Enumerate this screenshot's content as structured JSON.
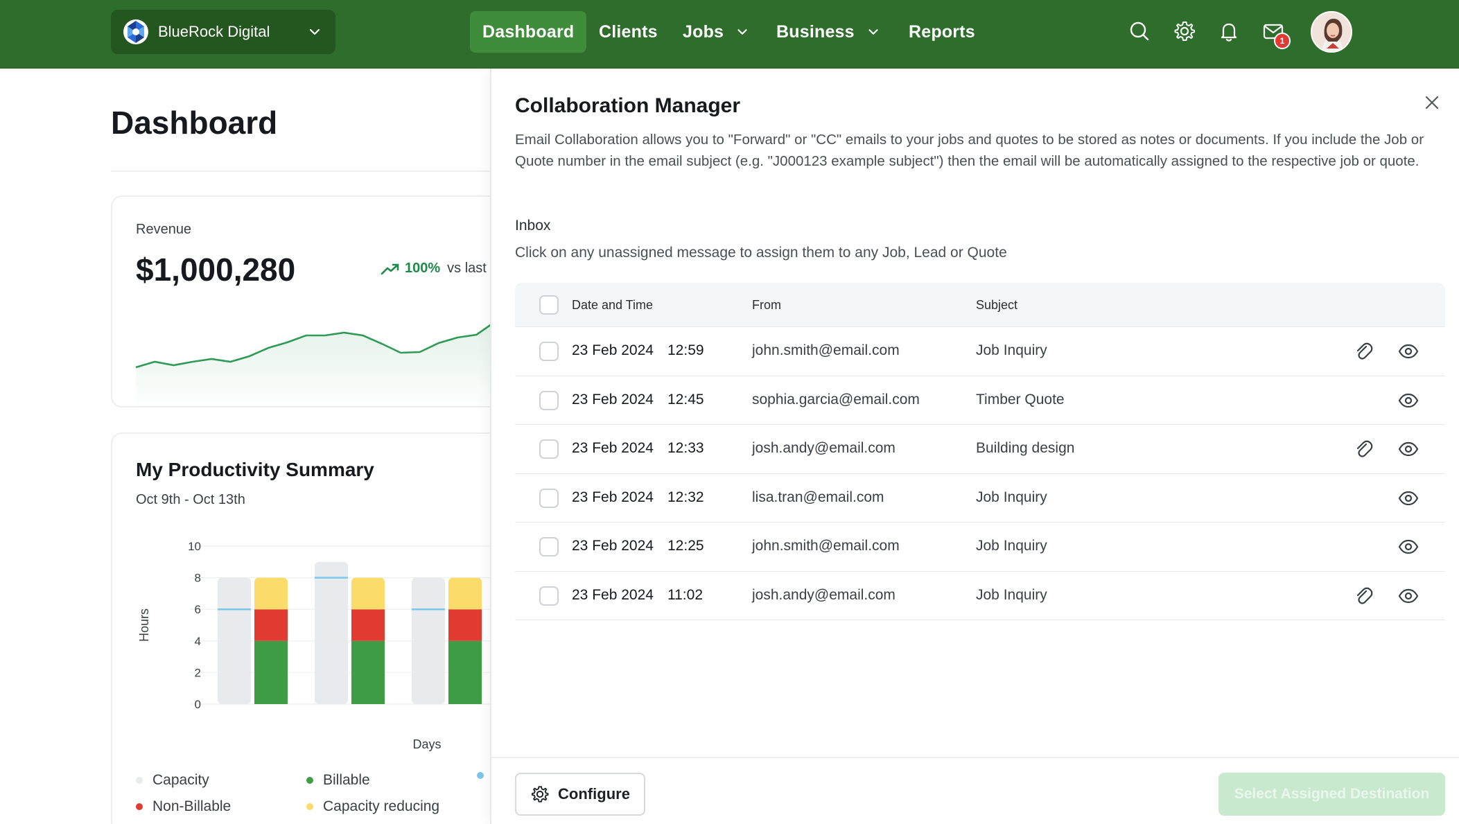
{
  "header": {
    "org_name": "BlueRock Digital",
    "nav": [
      {
        "label": "Dashboard",
        "active": true
      },
      {
        "label": "Clients"
      },
      {
        "label": "Jobs",
        "has_dropdown": true
      },
      {
        "label": "Business",
        "has_dropdown": true
      },
      {
        "label": "Reports"
      }
    ],
    "mail_badge_count": "1",
    "icons": [
      "search-icon",
      "gear-icon",
      "bell-icon",
      "mail-icon",
      "avatar"
    ]
  },
  "dashboard": {
    "title": "Dashboard",
    "revenue": {
      "label": "Revenue",
      "value": "$1,000,280",
      "trend_pct": "100%",
      "trend_text": "vs last",
      "sparkline": [
        10,
        18,
        13,
        18,
        22,
        18,
        26,
        38,
        46,
        56,
        56,
        60,
        56,
        44,
        31,
        32,
        45,
        53,
        57,
        76,
        80
      ]
    },
    "productivity": {
      "title": "My Productivity Summary",
      "range": "Oct 9th - Oct 13th",
      "chart_data": {
        "type": "bar",
        "ylabel": "Hours",
        "xlabel": "Days",
        "ylim": [
          0,
          10
        ],
        "y_ticks": [
          "10",
          "8",
          "6",
          "4",
          "2",
          "0"
        ],
        "capacity": [
          8,
          9,
          8
        ],
        "capacity_line": [
          6,
          8,
          6
        ],
        "stacks": [
          {
            "billable": 4,
            "non_billable": 2,
            "capacity_reducing": 2
          },
          {
            "billable": 4,
            "non_billable": 2,
            "capacity_reducing": 2
          },
          {
            "billable": 4,
            "non_billable": 2,
            "capacity_reducing": 2
          }
        ],
        "colors": {
          "capacity": "#e9eaed",
          "billable": "#3e9d45",
          "non_billable": "#e23c32",
          "capacity_reducing": "#fbdc6b",
          "capacity_line": "#7cc6ea"
        }
      },
      "legend": [
        {
          "label": "Capacity",
          "color": "#e9eaed"
        },
        {
          "label": "Billable",
          "color": "#3e9d45"
        },
        {
          "label": "Non-Billable",
          "color": "#e23c32"
        },
        {
          "label": "Capacity reducing",
          "color": "#fbdc6b"
        }
      ]
    }
  },
  "panel": {
    "title": "Collaboration Manager",
    "description": "Email Collaboration allows you to \"Forward\" or \"CC\" emails to your jobs and quotes to be stored as notes or documents. If you include the Job or Quote number in the email subject (e.g. \"J000123 example subject\") then the email will be automatically assigned to the respective job or quote.",
    "inbox_label": "Inbox",
    "inbox_hint": "Click on any unassigned message to assign them to any Job, Lead or Quote",
    "columns": {
      "date": "Date and Time",
      "from": "From",
      "subject": "Subject"
    },
    "rows": [
      {
        "date": "23 Feb 2024",
        "time": "12:59",
        "from": "john.smith@email.com",
        "subject": "Job Inquiry",
        "attachment": true
      },
      {
        "date": "23 Feb 2024",
        "time": "12:45",
        "from": "sophia.garcia@email.com",
        "subject": "Timber Quote",
        "attachment": false
      },
      {
        "date": "23 Feb 2024",
        "time": "12:33",
        "from": "josh.andy@email.com",
        "subject": "Building design",
        "attachment": true
      },
      {
        "date": "23 Feb 2024",
        "time": "12:32",
        "from": "lisa.tran@email.com",
        "subject": "Job Inquiry",
        "attachment": false
      },
      {
        "date": "23 Feb 2024",
        "time": "12:25",
        "from": "john.smith@email.com",
        "subject": "Job Inquiry",
        "attachment": false
      },
      {
        "date": "23 Feb 2024",
        "time": "11:02",
        "from": "josh.andy@email.com",
        "subject": "Job Inquiry",
        "attachment": true
      }
    ],
    "configure_label": "Configure",
    "select_label": "Select Assigned Destination"
  }
}
